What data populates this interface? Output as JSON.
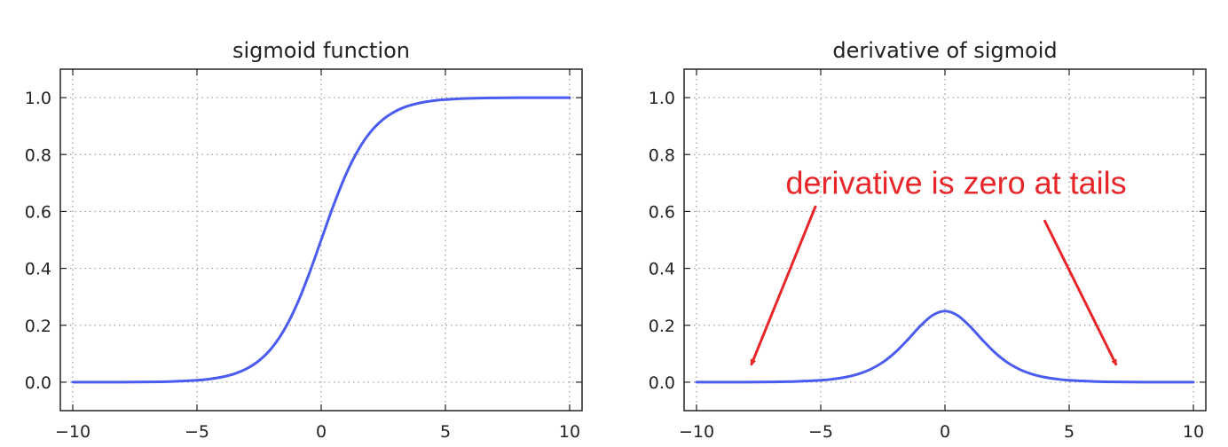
{
  "chart_data": [
    {
      "type": "line",
      "title": "sigmoid function",
      "xlabel": "",
      "ylabel": "",
      "xlim": [
        -10.5,
        10.5
      ],
      "ylim": [
        -0.1,
        1.1
      ],
      "xticks": [
        -10,
        -5,
        0,
        5,
        10
      ],
      "xtick_labels": [
        "−10",
        "−5",
        "0",
        "5",
        "10"
      ],
      "yticks": [
        0.0,
        0.2,
        0.4,
        0.6,
        0.8,
        1.0
      ],
      "ytick_labels": [
        "0.0",
        "0.2",
        "0.4",
        "0.6",
        "0.8",
        "1.0"
      ],
      "grid": true,
      "legend": "none",
      "series": [
        {
          "color": "#4a5cf0",
          "x": [
            -10,
            -9,
            -8,
            -7,
            -6,
            -5,
            -4.5,
            -4,
            -3.5,
            -3,
            -2.5,
            -2,
            -1.5,
            -1,
            -0.5,
            0,
            0.5,
            1,
            1.5,
            2,
            2.5,
            3,
            3.5,
            4,
            4.5,
            5,
            6,
            7,
            8,
            9,
            10
          ],
          "y": [
            0.0,
            0.0001,
            0.0003,
            0.0009,
            0.0025,
            0.0067,
            0.011,
            0.018,
            0.0293,
            0.0474,
            0.0759,
            0.1192,
            0.1824,
            0.2689,
            0.3775,
            0.5,
            0.6225,
            0.7311,
            0.8176,
            0.8808,
            0.9241,
            0.9526,
            0.9707,
            0.982,
            0.989,
            0.9933,
            0.9975,
            0.9991,
            0.9997,
            0.9999,
            1.0
          ]
        }
      ]
    },
    {
      "type": "line",
      "title": "derivative of sigmoid",
      "xlabel": "",
      "ylabel": "",
      "xlim": [
        -10.5,
        10.5
      ],
      "ylim": [
        -0.1,
        1.1
      ],
      "xticks": [
        -10,
        -5,
        0,
        5,
        10
      ],
      "xtick_labels": [
        "−10",
        "−5",
        "0",
        "5",
        "10"
      ],
      "yticks": [
        0.0,
        0.2,
        0.4,
        0.6,
        0.8,
        1.0
      ],
      "ytick_labels": [
        "0.0",
        "0.2",
        "0.4",
        "0.6",
        "0.8",
        "1.0"
      ],
      "grid": true,
      "legend": "none",
      "series": [
        {
          "color": "#4a5cf0",
          "x": [
            -10,
            -9,
            -8,
            -7,
            -6,
            -5,
            -4.5,
            -4,
            -3.5,
            -3,
            -2.5,
            -2,
            -1.5,
            -1,
            -0.5,
            0,
            0.5,
            1,
            1.5,
            2,
            2.5,
            3,
            3.5,
            4,
            4.5,
            5,
            6,
            7,
            8,
            9,
            10
          ],
          "y": [
            0.0,
            0.0001,
            0.0003,
            0.0009,
            0.0025,
            0.0066,
            0.0109,
            0.0177,
            0.0285,
            0.0452,
            0.0701,
            0.105,
            0.1491,
            0.1966,
            0.235,
            0.25,
            0.235,
            0.1966,
            0.1491,
            0.105,
            0.0701,
            0.0452,
            0.0285,
            0.0177,
            0.0109,
            0.0066,
            0.0025,
            0.0009,
            0.0003,
            0.0001,
            0.0
          ]
        }
      ],
      "annotations": [
        {
          "text": "derivative is zero at tails",
          "color": "#e8262a",
          "text_x": 0.45,
          "text_y": 0.7,
          "arrows": [
            {
              "from": [
                -5.2,
                0.62
              ],
              "to": [
                -7.8,
                0.06
              ]
            },
            {
              "from": [
                4.0,
                0.57
              ],
              "to": [
                6.9,
                0.06
              ]
            }
          ]
        }
      ]
    }
  ]
}
